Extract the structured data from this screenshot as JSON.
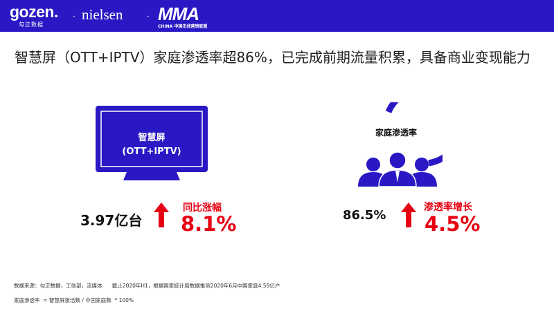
{
  "header": {
    "logo_gozen": "gozen.",
    "logo_gozen_sub": "勾正数据",
    "separator": "·",
    "logo_nielsen": "nielsen",
    "logo_mma": "MMA",
    "logo_mma_sub": "CHINA 中国无线营销联盟",
    "band_color": "#2a18c4"
  },
  "headline": "智慧屏（OTT+IPTV）家庭渗透率超86%，已完成前期流量积累，具备商业变现能力",
  "left_block": {
    "tv_title": "智慧屏",
    "tv_subtitle": "(OTT+IPTV)",
    "value": "3.97亿台",
    "growth_label": "同比涨幅",
    "growth_value": "8.1%",
    "icon": "tv-icon"
  },
  "right_block": {
    "icon_label": "家庭渗透率",
    "value": "86.5%",
    "growth_label": "渗透率增长",
    "growth_value": "4.5%",
    "icon": "people-group-icon",
    "ring_level": 0.865
  },
  "footnotes": {
    "source": "数据来源：勾正数据，工信部，流媒体      截止2020年H1，根据国家统计局数据推测2020年6月中国家庭4.59亿户",
    "formula": "家庭渗透率  = 智慧屏激活数 / 中国家庭数  * 100%"
  },
  "colors": {
    "accent_blue": "#2a18c4",
    "red": "#e60012"
  }
}
